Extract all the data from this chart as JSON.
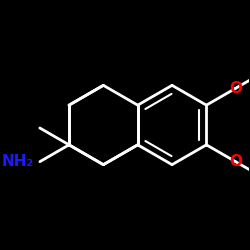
{
  "bg": "#000000",
  "bond_color": "#ffffff",
  "O_color": "#ff0000",
  "N_color": "#1a1aff",
  "bond_lw": 2.0,
  "inner_lw": 1.5,
  "figsize": [
    2.5,
    2.5
  ],
  "dpi": 100,
  "xlim": [
    -2.8,
    2.8
  ],
  "ylim": [
    -2.8,
    2.8
  ]
}
